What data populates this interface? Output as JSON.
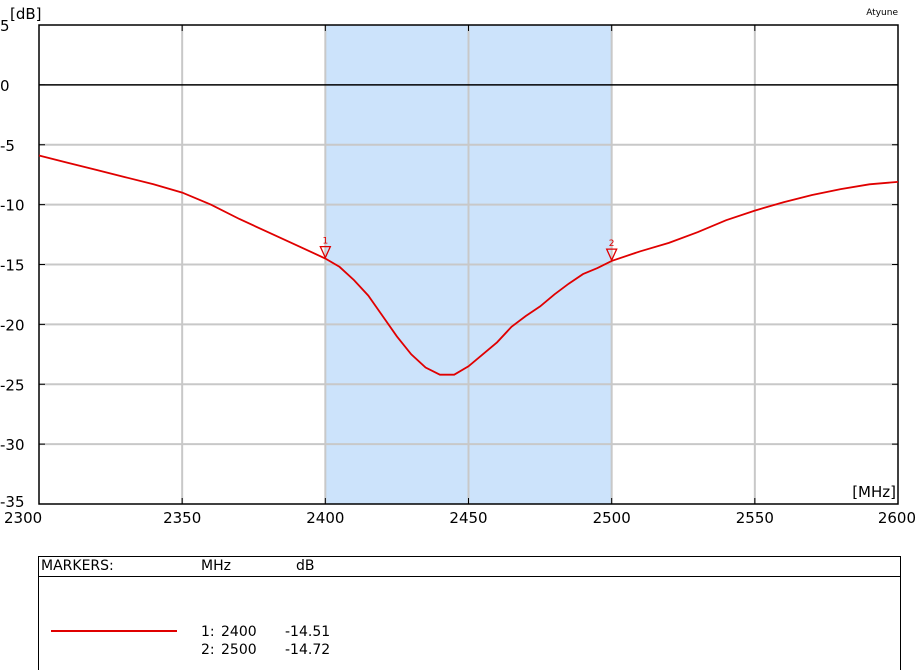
{
  "app_label": "Atyune",
  "chart_data": {
    "type": "line",
    "y_unit": "[dB]",
    "x_unit": "[MHz]",
    "xlim": [
      2300,
      2600
    ],
    "ylim": [
      -35,
      5
    ],
    "x_ticks": [
      2300,
      2350,
      2400,
      2450,
      2500,
      2550,
      2600
    ],
    "y_ticks": [
      5,
      0,
      -5,
      -10,
      -15,
      -20,
      -25,
      -30,
      -35
    ],
    "grid": true,
    "highlight_band": [
      2400,
      2500
    ],
    "colors": {
      "line": "#e00000",
      "band": "#cce3fb",
      "grid": "#c8c8c8"
    },
    "series": [
      {
        "x": [
          2300,
          2310,
          2320,
          2330,
          2340,
          2350,
          2360,
          2370,
          2380,
          2390,
          2400,
          2405,
          2410,
          2415,
          2420,
          2425,
          2430,
          2435,
          2440,
          2445,
          2450,
          2455,
          2460,
          2465,
          2470,
          2475,
          2480,
          2485,
          2490,
          2495,
          2500,
          2510,
          2520,
          2530,
          2540,
          2550,
          2560,
          2570,
          2580,
          2590,
          2600
        ],
        "y": [
          -5.9,
          -6.5,
          -7.1,
          -7.7,
          -8.3,
          -9.0,
          -10.0,
          -11.2,
          -12.3,
          -13.4,
          -14.5,
          -15.2,
          -16.3,
          -17.6,
          -19.3,
          -21.0,
          -22.5,
          -23.6,
          -24.2,
          -24.2,
          -23.5,
          -22.5,
          -21.5,
          -20.2,
          -19.3,
          -18.5,
          -17.5,
          -16.6,
          -15.8,
          -15.3,
          -14.7,
          -13.9,
          -13.2,
          -12.3,
          -11.3,
          -10.5,
          -9.8,
          -9.2,
          -8.7,
          -8.3,
          -8.1
        ]
      }
    ],
    "markers": [
      {
        "id": "1",
        "x": 2400,
        "y": -14.51
      },
      {
        "id": "2",
        "x": 2500,
        "y": -14.72
      }
    ]
  },
  "markers_table": {
    "header": {
      "title": "MARKERS:",
      "col_x": "MHz",
      "col_y": "dB"
    },
    "rows": [
      {
        "index": "1:",
        "freq": "2400",
        "db": "-14.51"
      },
      {
        "index": "2:",
        "freq": "2500",
        "db": "-14.72"
      }
    ]
  }
}
